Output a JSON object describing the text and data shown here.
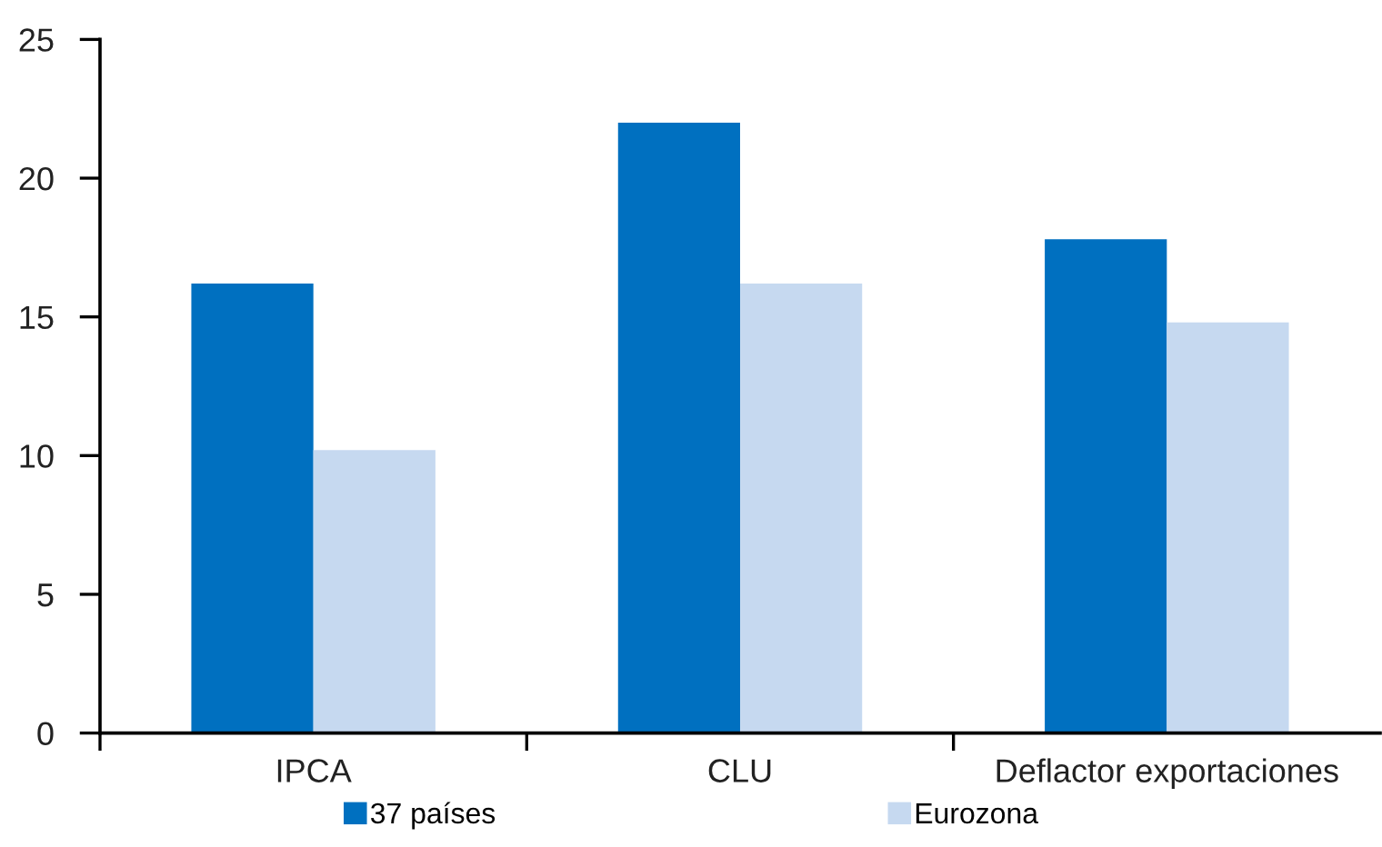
{
  "chart_data": {
    "type": "bar",
    "categories": [
      "IPCA",
      "CLU",
      "Deflactor exportaciones"
    ],
    "series": [
      {
        "name": "37 países",
        "color": "#0070c0",
        "values": [
          16.2,
          22.0,
          17.8
        ]
      },
      {
        "name": "Eurozona",
        "color": "#c6d9f0",
        "values": [
          10.2,
          16.2,
          14.8
        ]
      }
    ],
    "ylim": [
      0,
      25
    ],
    "yticks": [
      0,
      5,
      10,
      15,
      20,
      25
    ],
    "grid": false,
    "legend": "bottom"
  }
}
